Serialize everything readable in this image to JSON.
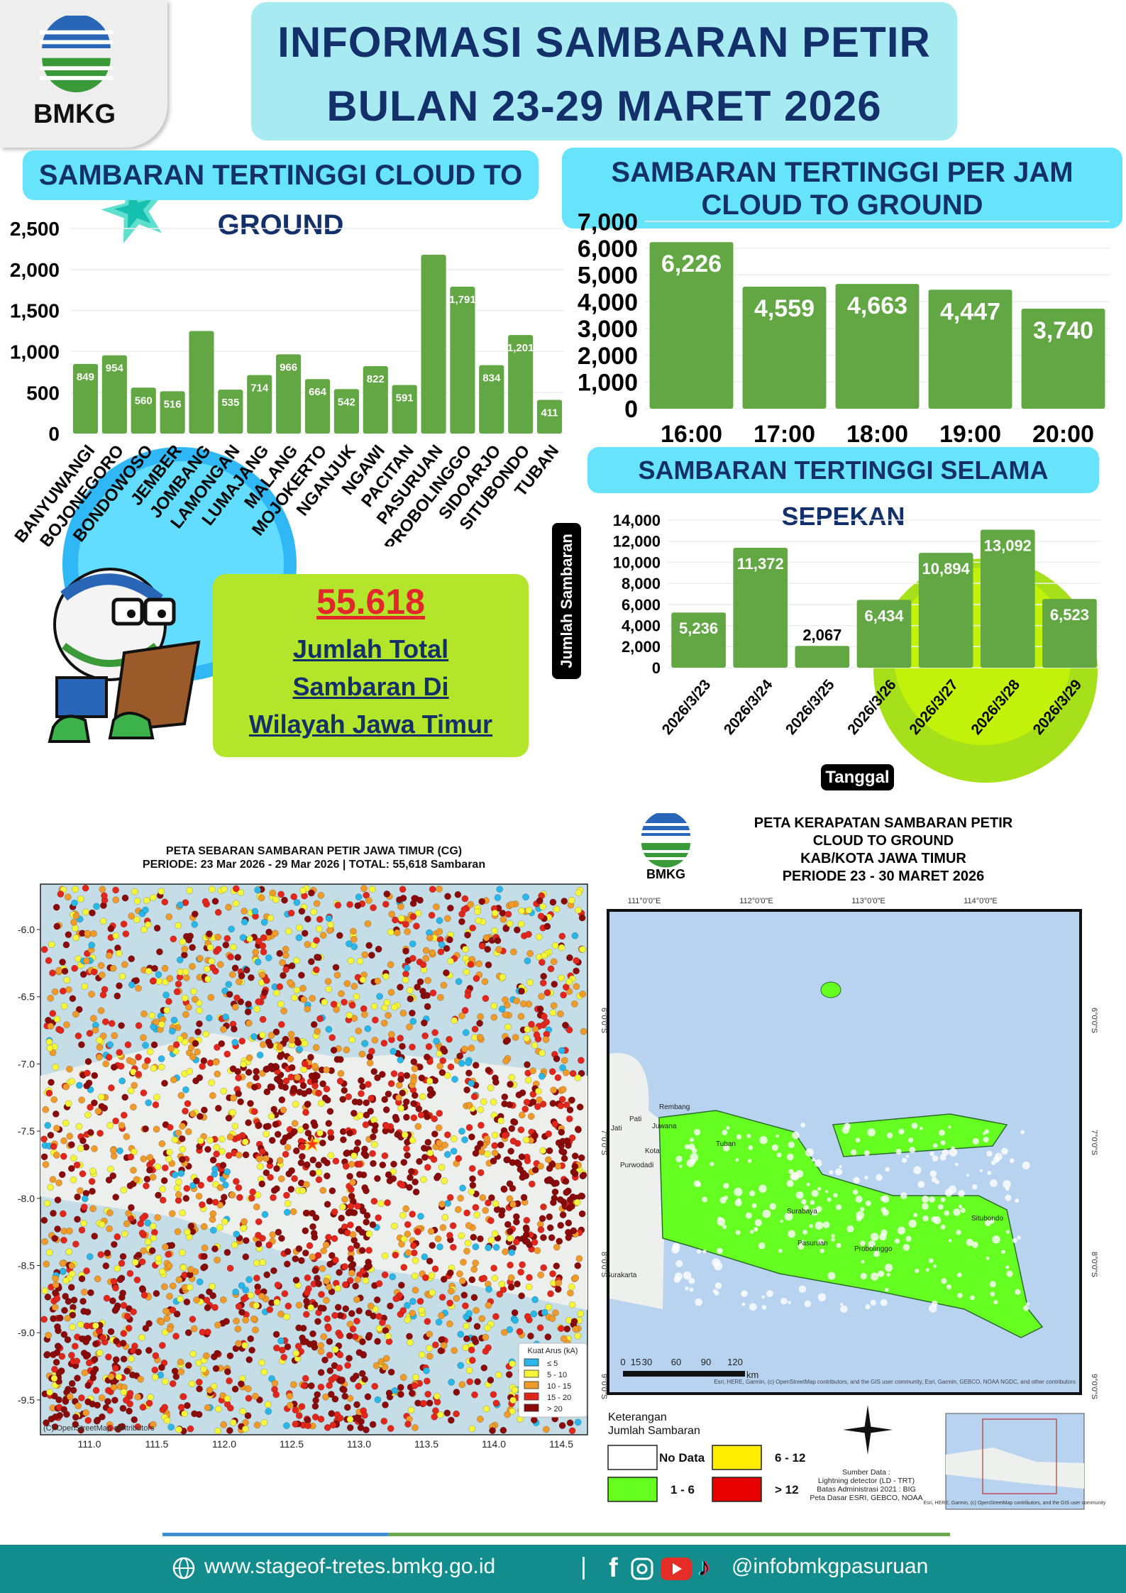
{
  "header": {
    "logo_text": "BMKG",
    "title_line1": "INFORMASI SAMBARAN PETIR",
    "title_line2": "BULAN 23-29 MARET 2026"
  },
  "colors": {
    "bar_green": "#62a744",
    "navy": "#13306b",
    "pill_cyan": "#67e3fb",
    "lime": "#b3e52a",
    "footer_teal": "#128c8c",
    "total_red": "#e3262c"
  },
  "chart_data": [
    {
      "type": "bar",
      "title": "SAMBARAN TERTINGGI  CLOUD TO GROUND",
      "categories": [
        "BANYUWANGI",
        "BOJONEGORO",
        "BONDOWOSO",
        "JEMBER",
        "JOMBANG",
        "LAMONGAN",
        "LUMAJANG",
        "MALANG",
        "MOJOKERTO",
        "NGANJUK",
        "NGAWI",
        "PACITAN",
        "PASURUAN",
        "PROBOLINGGO",
        "SIDOARJO",
        "SITUBONDO",
        "TUBAN"
      ],
      "values": [
        849,
        954,
        560,
        516,
        1250,
        535,
        714,
        966,
        664,
        542,
        822,
        591,
        2180,
        1791,
        834,
        1201,
        411
      ],
      "data_labels": [
        "849",
        "954",
        "560",
        "516",
        "",
        "535",
        "714",
        "966",
        "664",
        "542",
        "822",
        "591",
        "",
        "1,791",
        "834",
        "1,201",
        "411"
      ],
      "yticks": [
        "0",
        "500",
        "1,000",
        "1,500",
        "2,000",
        "2,500"
      ],
      "ylim": [
        0,
        2500
      ],
      "grid": true
    },
    {
      "type": "bar",
      "title": "SAMBARAN TERTINGGI PER JAM CLOUD TO GROUND",
      "categories": [
        "16:00",
        "17:00",
        "18:00",
        "19:00",
        "20:00"
      ],
      "values": [
        6226,
        4559,
        4663,
        4447,
        3740
      ],
      "data_labels": [
        "6,226",
        "4,559",
        "4,663",
        "4,447",
        "3,740"
      ],
      "yticks": [
        "0",
        "1,000",
        "2,000",
        "3,000",
        "4,000",
        "5,000",
        "6,000",
        "7,000"
      ],
      "ylim": [
        0,
        7000
      ],
      "grid": true
    },
    {
      "type": "bar",
      "title": "SAMBARAN TERTINGGI SELAMA SEPEKAN",
      "categories": [
        "2026/3/23",
        "2026/3/24",
        "2026/3/25",
        "2026/3/26",
        "2026/3/27",
        "2026/3/28",
        "2026/3/29"
      ],
      "values": [
        5236,
        11372,
        2067,
        6434,
        10894,
        13092,
        6523
      ],
      "data_labels": [
        "5,236",
        "11,372",
        "2,067",
        "6,434",
        "10,894",
        "13,092",
        "6,523"
      ],
      "yticks": [
        "0",
        "2,000",
        "4,000",
        "6,000",
        "8,000",
        "10,000",
        "12,000",
        "14,000"
      ],
      "ylim": [
        0,
        14000
      ],
      "xlabel": "Tanggal",
      "ylabel": "Jumlah Sambaran",
      "grid": true
    }
  ],
  "total": {
    "value": "55.618",
    "line1": "Jumlah Total",
    "line2": "Sambaran Di",
    "line3": "Wilayah Jawa Timur"
  },
  "map_left": {
    "title": "PETA SEBARAN SAMBARAN PETIR JAWA TIMUR (CG)",
    "subtitle": "PERIODE: 23 Mar 2026 - 29 Mar 2026 | TOTAL: 55,618 Sambaran",
    "yticks": [
      "-6.0",
      "-6.5",
      "-7.0",
      "-7.5",
      "-8.0",
      "-8.5",
      "-9.0",
      "-9.5"
    ],
    "xticks": [
      "111.0",
      "111.5",
      "112.0",
      "112.5",
      "113.0",
      "113.5",
      "114.0",
      "114.5"
    ],
    "attribution": "(C) OpenStreetMap contributors",
    "legend_title": "Kuat Arus (kA)",
    "legend": [
      {
        "label": "≤ 5",
        "color": "#29b6e8"
      },
      {
        "label": "5 - 10",
        "color": "#f5f53a"
      },
      {
        "label": "10 - 15",
        "color": "#f09a2a"
      },
      {
        "label": "15 - 20",
        "color": "#e3261c"
      },
      {
        "label": "> 20",
        "color": "#8b0a0a"
      }
    ]
  },
  "map_right": {
    "logo_text": "BMKG",
    "title_lines": [
      "PETA KERAPATAN SAMBARAN PETIR",
      "CLOUD TO GROUND",
      "KAB/KOTA JAWA TIMUR",
      "PERIODE 23 - 30 MARET 2026"
    ],
    "xticks": [
      "111°0'0\"E",
      "112°0'0\"E",
      "113°0'0\"E",
      "114°0'0\"E"
    ],
    "yticks": [
      "6°0'0\"S",
      "7°0'0\"S",
      "8°0'0\"S",
      "9°0'0\"S"
    ],
    "place_labels": [
      "Rembang",
      "Pati",
      "Juwana",
      "Jati",
      "Kota",
      "Purwodadi",
      "Tuban",
      "Surabaya",
      "Pasuruan",
      "Probolinggo",
      "Surakarta",
      "Situbondo"
    ],
    "scale_labels": [
      "0",
      "15",
      "30",
      "60",
      "90",
      "120"
    ],
    "scale_unit": "km",
    "attribution": "Esri, HERE, Garmin, (c) OpenStreetMap contributors, and the GIS user community, Esri, Garmin, GEBCO, NOAA NGDC, and other contributors",
    "legend_title": "Keterangan",
    "legend_subtitle": "Jumlah Sambaran",
    "legend": [
      {
        "label": "No Data",
        "color": "#ffffff"
      },
      {
        "label": "6 - 12",
        "color": "#ffee00"
      },
      {
        "label": "1 - 6",
        "color": "#66ff22"
      },
      {
        "label": "> 12",
        "color": "#e60000"
      }
    ],
    "source_lines": [
      "Sumber Data :",
      "Lightning detector (LD - TRT)",
      "Batas Administrasi 2021  : BIG",
      "Peta Dasar ESRI, GEBCO, NOAA"
    ],
    "inset_attribution": "Esri, HERE, Garmin, (c) OpenStreetMap contributors, and the GIS user community"
  },
  "footer": {
    "website": "www.stageof-tretes.bmkg.go.id",
    "separator": "|",
    "handle": "@infobmkgpasuruan"
  }
}
